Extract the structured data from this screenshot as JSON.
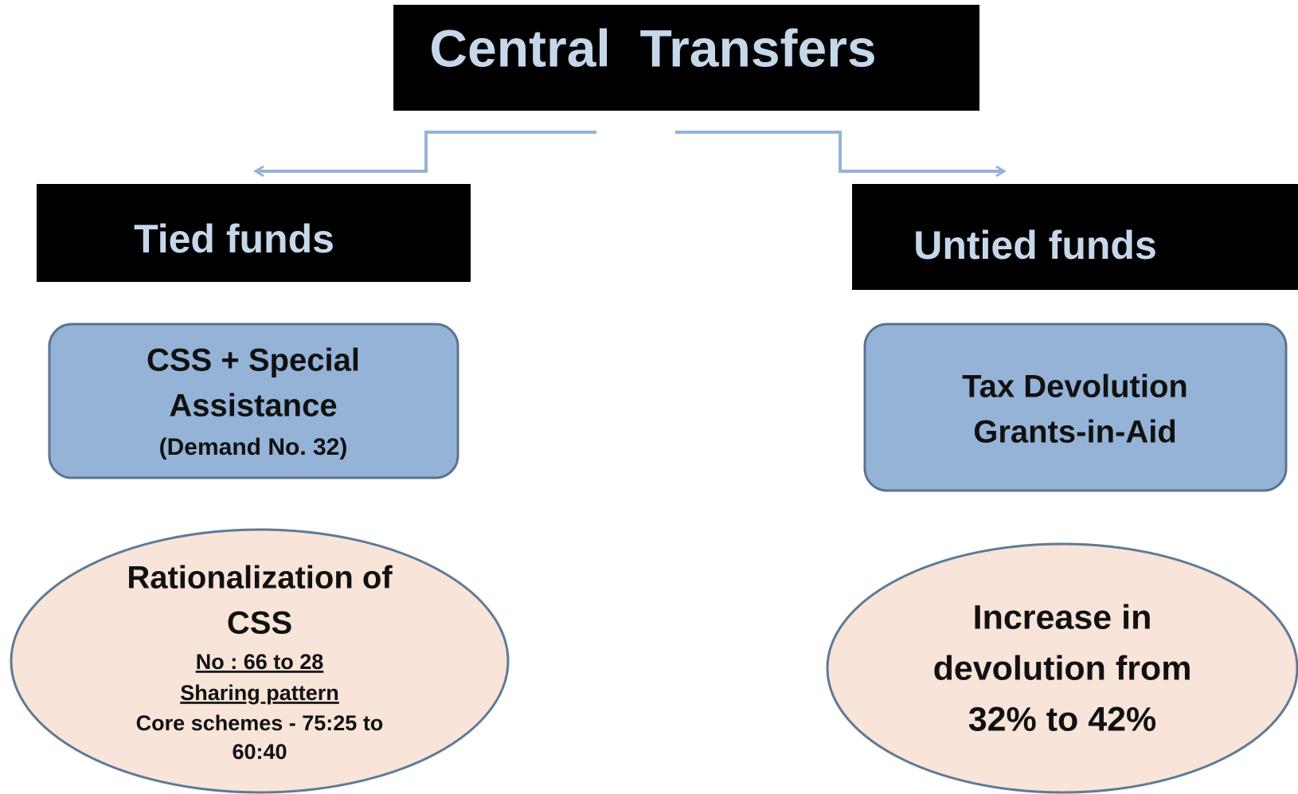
{
  "title": "Central  Transfers",
  "left": {
    "heading": "Tied funds",
    "box": [
      "CSS + Special",
      "Assistance",
      "(Demand No. 32)"
    ],
    "ellipse": {
      "heading": [
        "Rationalization of",
        "CSS"
      ],
      "underlined": [
        "No : 66 to 28",
        "Sharing pattern"
      ],
      "lines": [
        "Core schemes - 75:25 to",
        "60:40"
      ]
    }
  },
  "right": {
    "heading": "Untied funds",
    "box": [
      "Tax Devolution",
      "Grants-in-Aid"
    ],
    "ellipse": {
      "lines": [
        "Increase in",
        "devolution from",
        "32% to 42%"
      ]
    }
  }
}
